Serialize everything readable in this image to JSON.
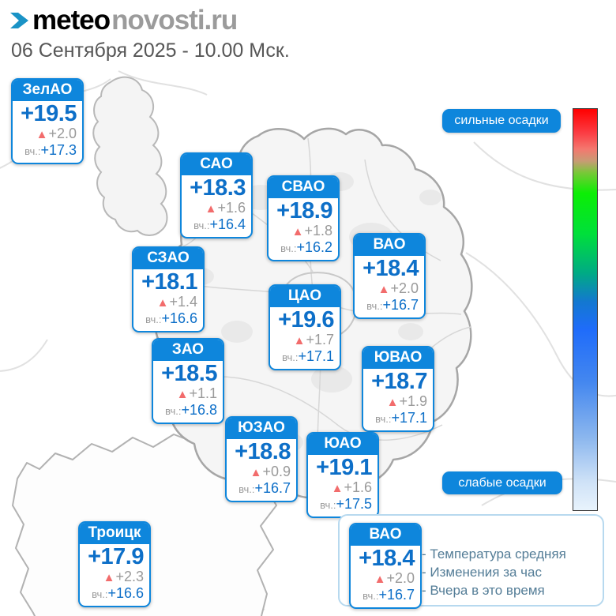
{
  "header": {
    "logo_black": "meteo",
    "logo_gray": "novosti.ru",
    "date": "06 Сентября 2025 - 10.00 Мск."
  },
  "icons": {
    "up_triangle": "▲",
    "logo_chevron": "chevron-right"
  },
  "labels": {
    "yesterday_prefix": "вч.:"
  },
  "scale": {
    "top_label": "сильные осадки",
    "bottom_label": "слабые осадки",
    "gradient": [
      "#ff0000 0%",
      "#fb3d44 6%",
      "#f4786f 10%",
      "#c79c74 13%",
      "#76c936 16%",
      "#0cee05 21%",
      "#00e03a 31%",
      "#00aa85 41%",
      "#1378d0 48%",
      "#1f6cfa 55%",
      "#4487ef 68%",
      "#8cb7ee 82%",
      "#cfe2f7 93%",
      "#e8f3fc 100%"
    ]
  },
  "districts": [
    {
      "name": "ЗелАО",
      "temp": "+19.5",
      "change": "+2.0",
      "yesterday": "+17.3"
    },
    {
      "name": "САО",
      "temp": "+18.3",
      "change": "+1.6",
      "yesterday": "+16.4"
    },
    {
      "name": "СВАО",
      "temp": "+18.9",
      "change": "+1.8",
      "yesterday": "+16.2"
    },
    {
      "name": "ВАО",
      "temp": "+18.4",
      "change": "+2.0",
      "yesterday": "+16.7"
    },
    {
      "name": "СЗАО",
      "temp": "+18.1",
      "change": "+1.4",
      "yesterday": "+16.6"
    },
    {
      "name": "ЦАО",
      "temp": "+19.6",
      "change": "+1.7",
      "yesterday": "+17.1"
    },
    {
      "name": "ЗАО",
      "temp": "+18.5",
      "change": "+1.1",
      "yesterday": "+16.8"
    },
    {
      "name": "ЮВАО",
      "temp": "+18.7",
      "change": "+1.9",
      "yesterday": "+17.1"
    },
    {
      "name": "ЮЗАО",
      "temp": "+18.8",
      "change": "+0.9",
      "yesterday": "+16.7"
    },
    {
      "name": "ЮАО",
      "temp": "+19.1",
      "change": "+1.6",
      "yesterday": "+17.5"
    },
    {
      "name": "Троицк",
      "temp": "+17.9",
      "change": "+2.3",
      "yesterday": "+16.6"
    }
  ],
  "legend": {
    "sample": {
      "name": "ВАО",
      "temp": "+18.4",
      "change": "+2.0",
      "yesterday": "+16.7"
    },
    "lines": [
      "- Температура средняя",
      "- Изменения за час",
      "- Вчера в это время"
    ]
  }
}
